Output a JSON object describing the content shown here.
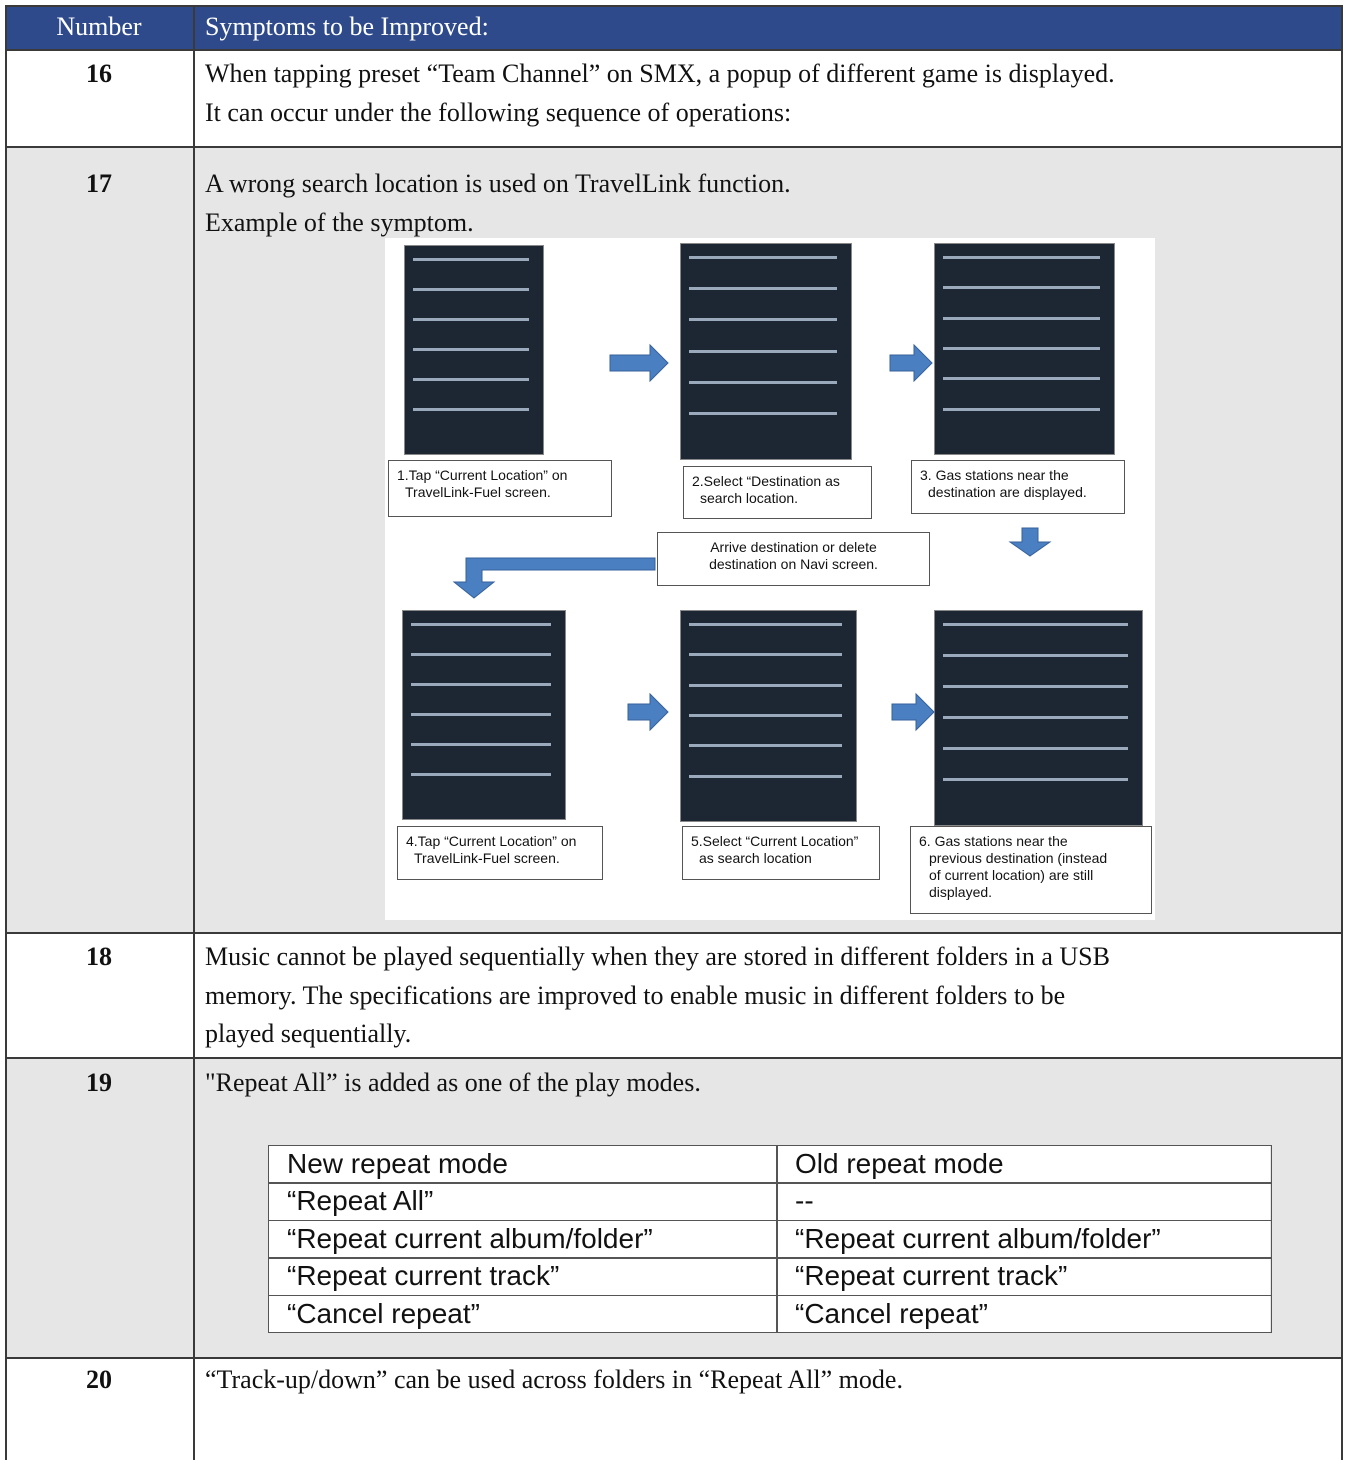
{
  "table": {
    "headers": [
      "Number",
      "Symptoms to be Improved:"
    ],
    "rows": [
      {
        "number": "16",
        "lines": [
          "When tapping preset “Team Channel” on SMX, a popup of different game is displayed.",
          "It can occur under the following sequence of operations:"
        ]
      },
      {
        "number": "17",
        "lines": [
          "A wrong search location is used on TravelLink function.",
          "Example of the symptom."
        ],
        "figure": {
          "steps": [
            [
              "1.Tap “Current Location” on",
              "TravelLink-Fuel screen."
            ],
            [
              "2.Select “Destination as",
              "search location."
            ],
            [
              "3. Gas stations near the",
              "destination are displayed."
            ],
            [
              "4.Tap “Current Location” on",
              "TravelLink-Fuel screen."
            ],
            [
              "5.Select “Current Location”",
              "as search location"
            ],
            [
              "6. Gas stations near the",
              "previous destination (instead",
              "of current location) are still",
              "displayed."
            ]
          ],
          "note": [
            "Arrive destination or delete",
            "destination on Navi screen."
          ]
        }
      },
      {
        "number": "18",
        "lines": [
          "Music cannot be played sequentially when they are stored in different folders in a USB",
          "memory. The specifications are improved to enable music in different folders to be",
          "played sequentially."
        ]
      },
      {
        "number": "19",
        "lines": [
          "\"Repeat All” is added as one of the play modes."
        ],
        "subtable": {
          "headers": [
            "New repeat mode",
            "Old repeat mode"
          ],
          "rows": [
            [
              "“Repeat All”",
              "--"
            ],
            [
              "“Repeat current album/folder”",
              "“Repeat current album/folder”"
            ],
            [
              "“Repeat current track”",
              "“Repeat current track”"
            ],
            [
              "“Cancel repeat”",
              "“Cancel repeat”"
            ]
          ]
        }
      },
      {
        "number": "20",
        "lines": [
          "“Track-up/down” can be used across folders in “Repeat All” mode."
        ]
      }
    ]
  }
}
